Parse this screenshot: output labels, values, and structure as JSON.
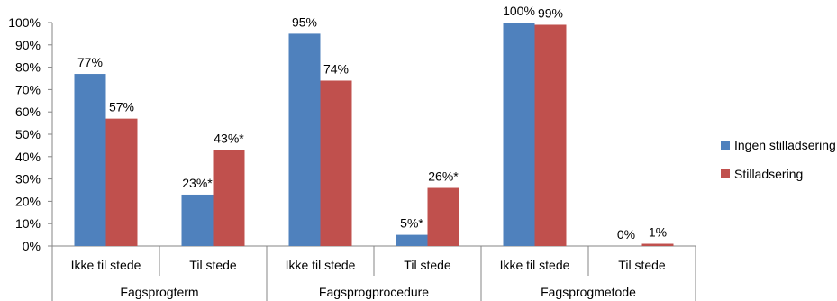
{
  "chart_data": {
    "type": "bar",
    "groups": [
      "Fagsprogterm",
      "Fagsprogprocedure",
      "Fagsprogmetode"
    ],
    "categories": [
      "Ikke til stede",
      "Til stede",
      "Ikke til stede",
      "Til stede",
      "Ikke til stede",
      "Til stede"
    ],
    "category_group": [
      0,
      0,
      1,
      1,
      2,
      2
    ],
    "series": [
      {
        "name": "Ingen stilladsering",
        "color": "#4F81BD",
        "values": [
          77,
          23,
          95,
          5,
          100,
          0
        ],
        "labels": [
          "77%",
          "23%*",
          "95%",
          "5%*",
          "100%",
          "0%"
        ]
      },
      {
        "name": "Stilladsering",
        "color": "#C0504D",
        "values": [
          57,
          43,
          74,
          26,
          99,
          1
        ],
        "labels": [
          "57%",
          "43%*",
          "74%",
          "26%*",
          "99%",
          "1%"
        ]
      }
    ],
    "y_ticks": [
      "0%",
      "10%",
      "20%",
      "30%",
      "40%",
      "50%",
      "60%",
      "70%",
      "80%",
      "90%",
      "100%"
    ],
    "ylim": [
      0,
      100
    ],
    "legend_position": "right",
    "grid": false
  }
}
